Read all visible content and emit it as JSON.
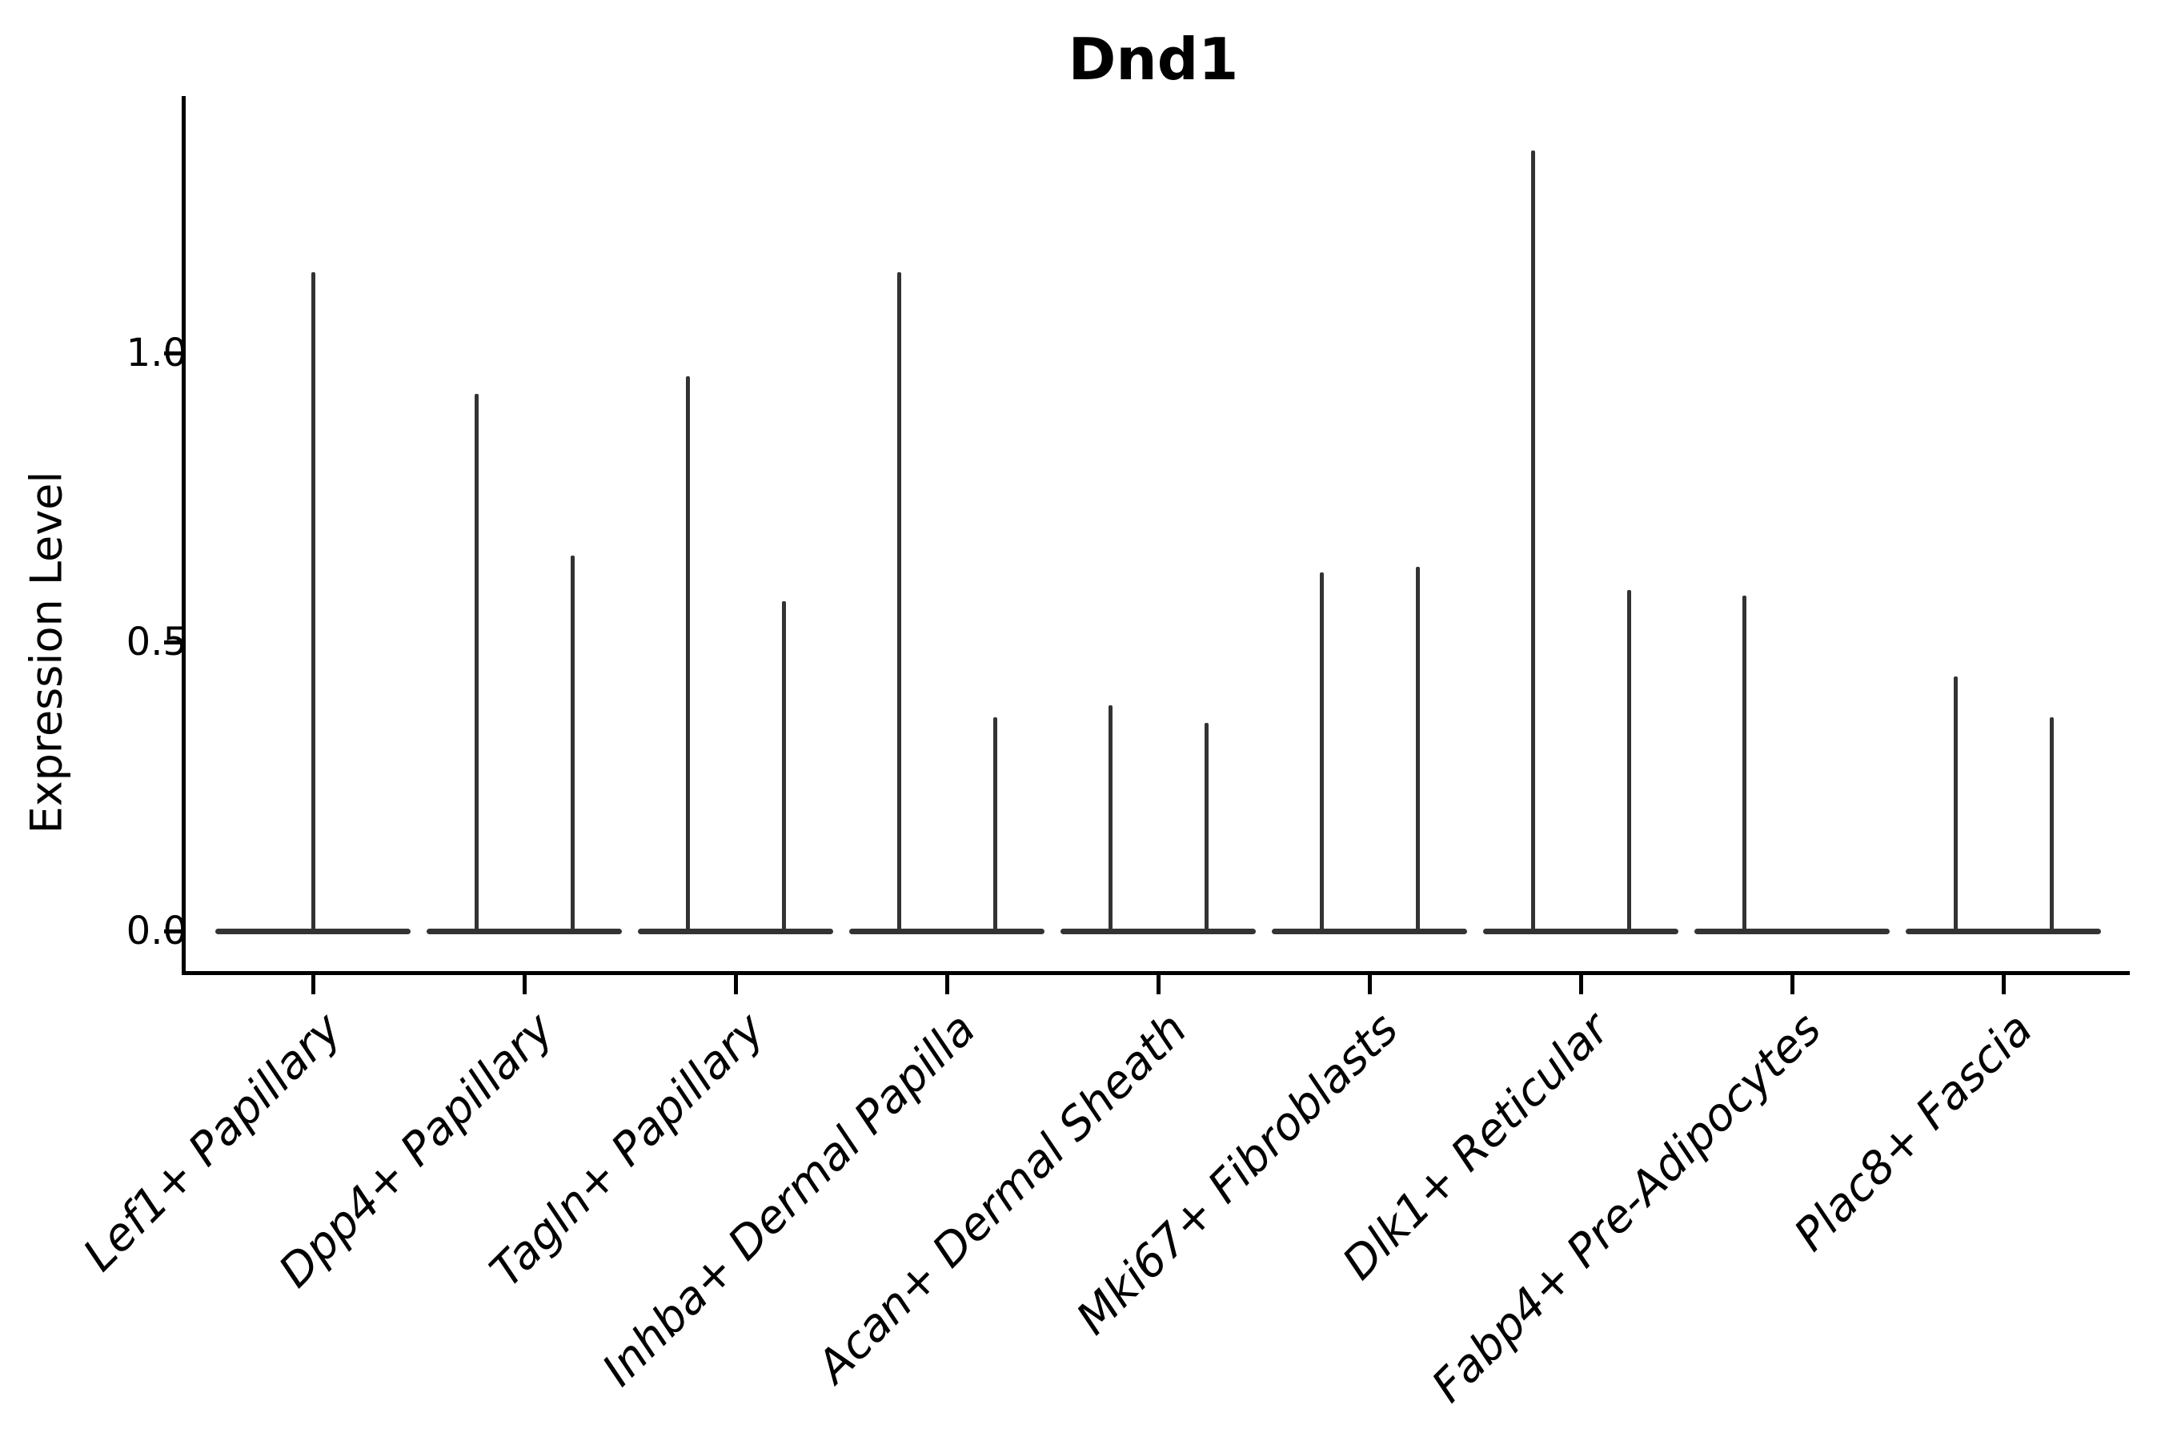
{
  "chart_data": {
    "type": "violin",
    "title": "Dnd1",
    "ylabel": "Expression Level",
    "xlabel": "",
    "yticks": [
      {
        "value": 0.0,
        "label": "0.0"
      },
      {
        "value": 0.5,
        "label": "0.5"
      },
      {
        "value": 1.0,
        "label": "1.0"
      }
    ],
    "ylim": [
      -0.07,
      1.44
    ],
    "grid": false,
    "legend_position": "none",
    "violin_color": "#333333",
    "axis_color": "#000000",
    "categories": [
      "Lef1+ Papillary",
      "Dpp4+ Papillary",
      "Tagln+ Papillary",
      "Inhba+ Dermal Papilla",
      "Acan+ Dermal Sheath",
      "Mki67+ Fibroblasts",
      "Dlk1+ Reticular",
      "Fabp4+ Pre-Adipocytes",
      "Plac8+ Fascia"
    ],
    "violins": [
      {
        "category": "Lef1+ Papillary",
        "spikes": [
          {
            "position": "center",
            "max_expression": 1.14
          }
        ]
      },
      {
        "category": "Dpp4+ Papillary",
        "spikes": [
          {
            "position": "left",
            "max_expression": 0.93
          },
          {
            "position": "right",
            "max_expression": 0.65
          }
        ]
      },
      {
        "category": "Tagln+ Papillary",
        "spikes": [
          {
            "position": "left",
            "max_expression": 0.96
          },
          {
            "position": "right",
            "max_expression": 0.57
          }
        ]
      },
      {
        "category": "Inhba+ Dermal Papilla",
        "spikes": [
          {
            "position": "left",
            "max_expression": 1.14
          },
          {
            "position": "right",
            "max_expression": 0.37
          }
        ]
      },
      {
        "category": "Acan+ Dermal Sheath",
        "spikes": [
          {
            "position": "left",
            "max_expression": 0.39
          },
          {
            "position": "right",
            "max_expression": 0.36
          }
        ]
      },
      {
        "category": "Mki67+ Fibroblasts",
        "spikes": [
          {
            "position": "left",
            "max_expression": 0.62
          },
          {
            "position": "right",
            "max_expression": 0.63
          }
        ]
      },
      {
        "category": "Dlk1+ Reticular",
        "spikes": [
          {
            "position": "left",
            "max_expression": 1.35
          },
          {
            "position": "right",
            "max_expression": 0.59
          }
        ]
      },
      {
        "category": "Fabp4+ Pre-Adipocytes",
        "spikes": [
          {
            "position": "left",
            "max_expression": 0.58
          },
          {
            "position": "right",
            "max_expression": 0.0
          }
        ]
      },
      {
        "category": "Plac8+ Fascia",
        "spikes": [
          {
            "position": "left",
            "max_expression": 0.44
          },
          {
            "position": "right",
            "max_expression": 0.37
          }
        ]
      }
    ],
    "baseline_value": 0.0
  }
}
